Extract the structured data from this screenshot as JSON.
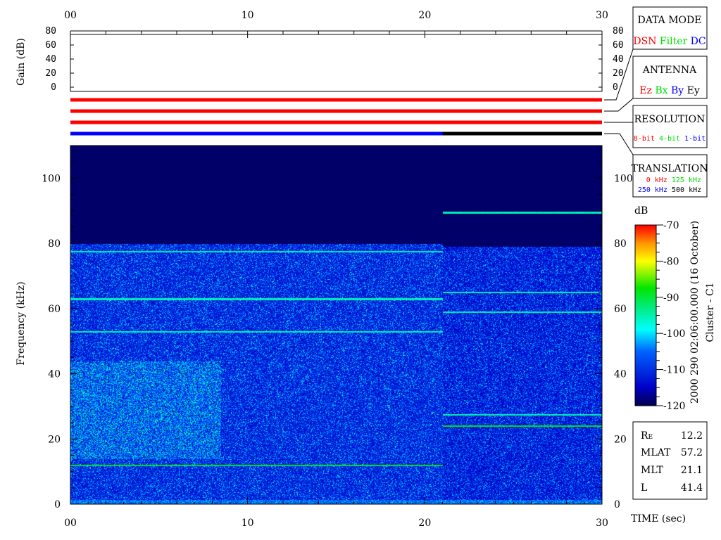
{
  "chart_data": {
    "type": "heatmap",
    "xlabel": "TIME (sec)",
    "ylabel": "Frequency (kHz)",
    "xlim": [
      0,
      30
    ],
    "ylim": [
      0,
      110
    ],
    "x_ticks": [
      "00",
      "10",
      "20",
      "30"
    ],
    "y_ticks": [
      "0",
      "20",
      "40",
      "60",
      "80",
      "100"
    ],
    "colorbar": {
      "label": "dB",
      "range": [
        -120,
        -70
      ],
      "ticks": [
        "-70",
        "-80",
        "-90",
        "-100",
        "-110",
        "-120"
      ]
    },
    "gain_panel": {
      "ylabel": "Gain (dB)",
      "ylim": [
        0,
        80
      ],
      "ticks": [
        "0",
        "20",
        "40",
        "60",
        "80"
      ]
    },
    "mode_change_time": 21,
    "band_top_khz": {
      "before": 80,
      "after": 79
    },
    "tones_khz": {
      "before": [
        77.5,
        63,
        53,
        12
      ],
      "after": [
        89.5,
        65,
        59,
        27.5,
        24
      ]
    },
    "status_lines": [
      {
        "name": "data-mode",
        "segments": [
          {
            "from": 0,
            "to": 30,
            "color": "#ff0000"
          }
        ]
      },
      {
        "name": "antenna",
        "segments": [
          {
            "from": 0,
            "to": 30,
            "color": "#ff0000"
          }
        ]
      },
      {
        "name": "resolution",
        "segments": [
          {
            "from": 0,
            "to": 30,
            "color": "#ff0000"
          }
        ]
      },
      {
        "name": "translation",
        "segments": [
          {
            "from": 0,
            "to": 21,
            "color": "#0000ff"
          },
          {
            "from": 21,
            "to": 30,
            "color": "#000000"
          }
        ]
      }
    ]
  },
  "legend": {
    "data_mode": {
      "title": "DATA MODE",
      "items": [
        {
          "label": "DSN",
          "color": "#ff0000"
        },
        {
          "label": "Filter",
          "color": "#00e000"
        },
        {
          "label": "DC",
          "color": "#0000ff"
        }
      ]
    },
    "antenna": {
      "title": "ANTENNA",
      "items": [
        {
          "label": "Ez",
          "color": "#ff0000"
        },
        {
          "label": "Bx",
          "color": "#00e000"
        },
        {
          "label": "By",
          "color": "#0000ff"
        },
        {
          "label": "Ey",
          "color": "#000000"
        }
      ]
    },
    "resolution": {
      "title": "RESOLUTION",
      "items": [
        {
          "label": "8-bit",
          "color": "#ff0000"
        },
        {
          "label": "4-bit",
          "color": "#00e000"
        },
        {
          "label": "1-bit",
          "color": "#0000ff"
        }
      ]
    },
    "translation": {
      "title": "TRANSLATION",
      "items": [
        {
          "label": "0 kHz",
          "color": "#ff0000"
        },
        {
          "label": "125 kHz",
          "color": "#00e000"
        },
        {
          "label": "250 kHz",
          "color": "#0000ff"
        },
        {
          "label": "500 kHz",
          "color": "#000000"
        }
      ]
    }
  },
  "info": {
    "timestamp": "2000 290 02:06:00.000 (16 October)",
    "spacecraft": "Cluster - C1",
    "rows": [
      {
        "label": "R",
        "sub": "E",
        "value": "12.2"
      },
      {
        "label": "MLAT",
        "sub": "",
        "value": "57.2"
      },
      {
        "label": "MLT",
        "sub": "",
        "value": "21.1"
      },
      {
        "label": "L",
        "sub": "",
        "value": "41.4"
      }
    ]
  }
}
